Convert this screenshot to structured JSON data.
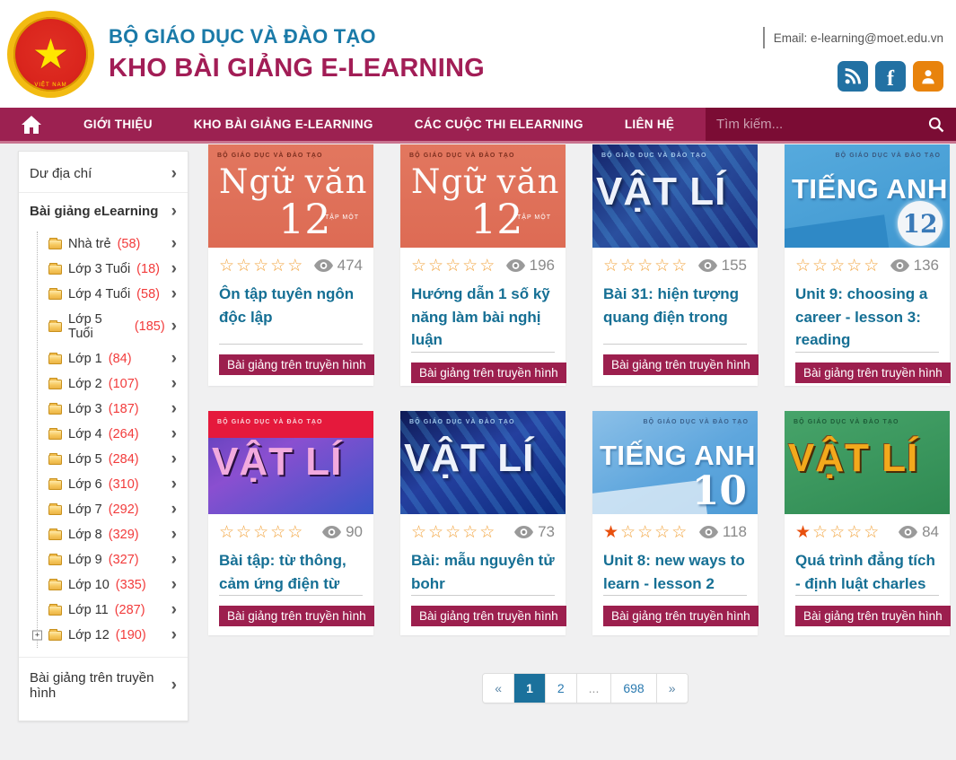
{
  "header": {
    "ministry": "BỘ GIÁO DỤC VÀ ĐÀO TẠO",
    "site_title": "KHO BÀI GIẢNG E-LEARNING",
    "email": "Email: e-learning@moet.edu.vn",
    "social_icons": [
      "rss-icon",
      "facebook-icon",
      "user-account-icon"
    ],
    "logo": "vietnam-national-emblem"
  },
  "nav": {
    "home_icon": "home-icon",
    "items": [
      "GIỚI THIỆU",
      "KHO BÀI GIẢNG E-LEARNING",
      "CÁC CUỘC THI ELEARNING",
      "LIÊN HỆ"
    ],
    "search_placeholder": "Tìm kiếm...",
    "search_icon": "search-icon"
  },
  "sidebar": {
    "top_item": "Dư địa chí",
    "section_title": "Bài giảng eLearning",
    "items": [
      {
        "label": "Nhà trẻ",
        "count": 58
      },
      {
        "label": "Lớp 3 Tuổi",
        "count": 18
      },
      {
        "label": "Lớp 4 Tuổi",
        "count": 58
      },
      {
        "label": "Lớp 5 Tuổi",
        "count": 185
      },
      {
        "label": "Lớp 1",
        "count": 84
      },
      {
        "label": "Lớp 2",
        "count": 107
      },
      {
        "label": "Lớp 3",
        "count": 187
      },
      {
        "label": "Lớp 4",
        "count": 264
      },
      {
        "label": "Lớp 5",
        "count": 284
      },
      {
        "label": "Lớp 6",
        "count": 310
      },
      {
        "label": "Lớp 7",
        "count": 292
      },
      {
        "label": "Lớp 8",
        "count": 329
      },
      {
        "label": "Lớp 9",
        "count": 327
      },
      {
        "label": "Lớp 10",
        "count": 335
      },
      {
        "label": "Lớp 11",
        "count": 287
      },
      {
        "label": "Lớp 12",
        "count": 190,
        "expandable": true
      }
    ],
    "bottom_item": "Bài giảng trên truyền hình"
  },
  "cards_tag": "Bài giảng trên truyền hình",
  "cards": [
    {
      "cover": {
        "style": "nguvan",
        "publisher": "BỘ GIÁO DỤC VÀ ĐÀO TẠO",
        "title": "Ngữ văn",
        "number": "12",
        "subtitle": "TẬP MỘT"
      },
      "stars": 0,
      "views": 474,
      "title": "Ôn tập tuyên ngôn độc lập"
    },
    {
      "cover": {
        "style": "nguvan",
        "publisher": "BỘ GIÁO DỤC VÀ ĐÀO TẠO",
        "title": "Ngữ văn",
        "number": "12",
        "subtitle": "TẬP MỘT"
      },
      "stars": 0,
      "views": 196,
      "title": "Hướng dẫn 1 số kỹ năng làm bài nghị luận"
    },
    {
      "cover": {
        "style": "vatli-blue",
        "publisher": "BỘ GIÁO DỤC VÀ ĐÀO TẠO",
        "title": "VẬT LÍ",
        "number": "",
        "subtitle": ""
      },
      "stars": 0,
      "views": 155,
      "title": "Bài 31: hiện tượng quang điện trong"
    },
    {
      "cover": {
        "style": "tienganh-12",
        "publisher": "BỘ GIÁO DỤC VÀ ĐÀO TẠO",
        "title": "TIẾNG ANH",
        "number": "12",
        "subtitle": ""
      },
      "stars": 0,
      "views": 136,
      "title": "Unit 9: choosing a career - lesson 3: reading"
    },
    {
      "cover": {
        "style": "vatli-pink",
        "publisher": "BỘ GIÁO DỤC VÀ ĐÀO TẠO",
        "title": "VẬT LÍ",
        "number": "",
        "subtitle": ""
      },
      "stars": 0,
      "views": 90,
      "title": "Bài tập: từ thông, cảm ứng điện từ"
    },
    {
      "cover": {
        "style": "vatli-navy",
        "publisher": "BỘ GIÁO DỤC VÀ ĐÀO TẠO",
        "title": "VẬT LÍ",
        "number": "",
        "subtitle": ""
      },
      "stars": 0,
      "views": 73,
      "title": "Bài: mẫu nguyên tử bohr"
    },
    {
      "cover": {
        "style": "tienganh-10",
        "publisher": "BỘ GIÁO DỤC VÀ ĐÀO TẠO",
        "title": "TIẾNG ANH",
        "number": "10",
        "subtitle": ""
      },
      "stars": 1,
      "views": 118,
      "title": "Unit 8: new ways to learn - lesson 2"
    },
    {
      "cover": {
        "style": "vatli-green",
        "publisher": "BỘ GIÁO DỤC VÀ ĐÀO TẠO",
        "title": "VẬT LÍ",
        "number": "",
        "subtitle": ""
      },
      "stars": 1,
      "views": 84,
      "title": "Quá trình đẳng tích - định luật charles"
    }
  ],
  "pagination": {
    "items": [
      {
        "label": "«",
        "type": "prev"
      },
      {
        "label": "1",
        "type": "page",
        "active": true
      },
      {
        "label": "2",
        "type": "page"
      },
      {
        "label": "...",
        "type": "ellipsis"
      },
      {
        "label": "698",
        "type": "page"
      },
      {
        "label": "»",
        "type": "next"
      }
    ]
  },
  "colors": {
    "brand_blue": "#1a7aa8",
    "brand_maroon": "#9c2151",
    "site_title_maroon": "#a21d56",
    "search_bg": "#7b0c34",
    "social_orange": "#e8830c",
    "social_blue": "#2271a3",
    "card_title_teal": "#156f94",
    "star_empty": "#f2a33c",
    "star_filled": "#e8500e",
    "sidebar_count_red": "#f23b3b",
    "tag_bg": "#9c1f4e",
    "pagination_active": "#1b719c",
    "content_bg": "#f0f0f1"
  }
}
